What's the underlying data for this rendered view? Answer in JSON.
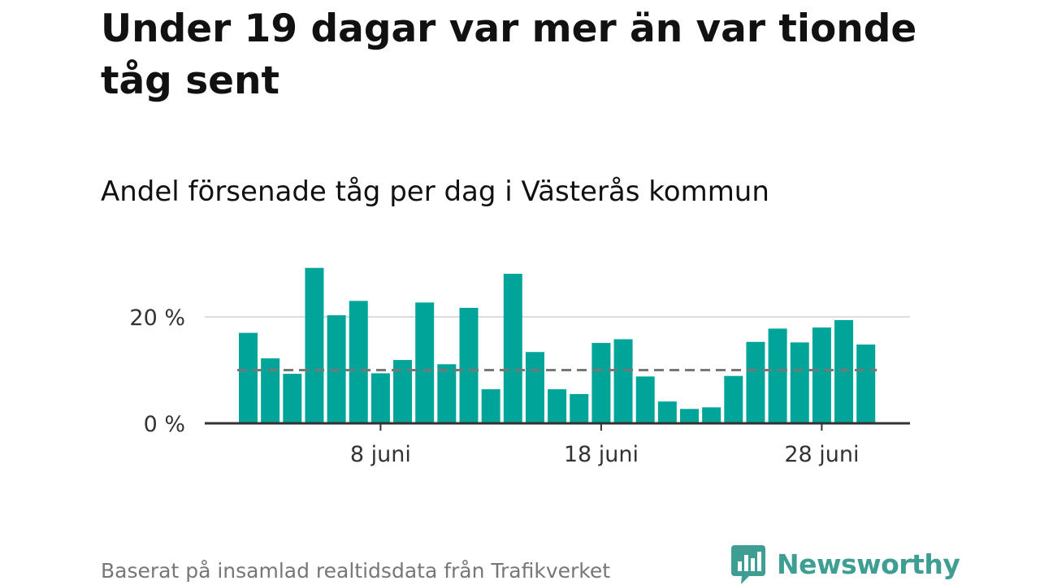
{
  "title": "Under 19 dagar var mer än var tionde tåg sent",
  "subtitle": "Andel försenade tåg per dag i Västerås kommun",
  "source": "Baserat på insamlad realtidsdata från Trafikverket",
  "brand": {
    "name": "Newsworthy",
    "icon": "newsworthy-chart-bubble-icon"
  },
  "colors": {
    "bar": "#00a499",
    "reference": "#777777",
    "grid": "#dddddd",
    "axis": "#333333",
    "brand": "#3f9e93"
  },
  "chart_data": {
    "type": "bar",
    "x": [
      "2 juni",
      "3 juni",
      "4 juni",
      "5 juni",
      "6 juni",
      "7 juni",
      "8 juni",
      "9 juni",
      "10 juni",
      "11 juni",
      "12 juni",
      "13 juni",
      "14 juni",
      "15 juni",
      "16 juni",
      "17 juni",
      "18 juni",
      "19 juni",
      "20 juni",
      "21 juni",
      "22 juni",
      "23 juni",
      "24 juni",
      "25 juni",
      "26 juni",
      "27 juni",
      "28 juni",
      "29 juni",
      "30 juni"
    ],
    "values": [
      17.0,
      12.2,
      9.3,
      29.2,
      20.3,
      23.0,
      9.4,
      11.9,
      22.7,
      11.1,
      21.7,
      6.4,
      28.1,
      13.4,
      6.4,
      5.5,
      15.1,
      15.8,
      8.8,
      4.1,
      2.7,
      3.0,
      8.9,
      15.3,
      17.8,
      15.2,
      18.0,
      19.4,
      14.8
    ],
    "ylim": [
      0,
      30
    ],
    "yticks": [
      {
        "value": 0,
        "label": "0 %"
      },
      {
        "value": 20,
        "label": "20 %"
      }
    ],
    "xticks": [
      {
        "value": "8 juni",
        "label": "8 juni"
      },
      {
        "value": "18 juni",
        "label": "18 juni"
      },
      {
        "value": "28 juni",
        "label": "28 juni"
      }
    ],
    "reference_line": 10,
    "grid": true,
    "legend": "none"
  }
}
